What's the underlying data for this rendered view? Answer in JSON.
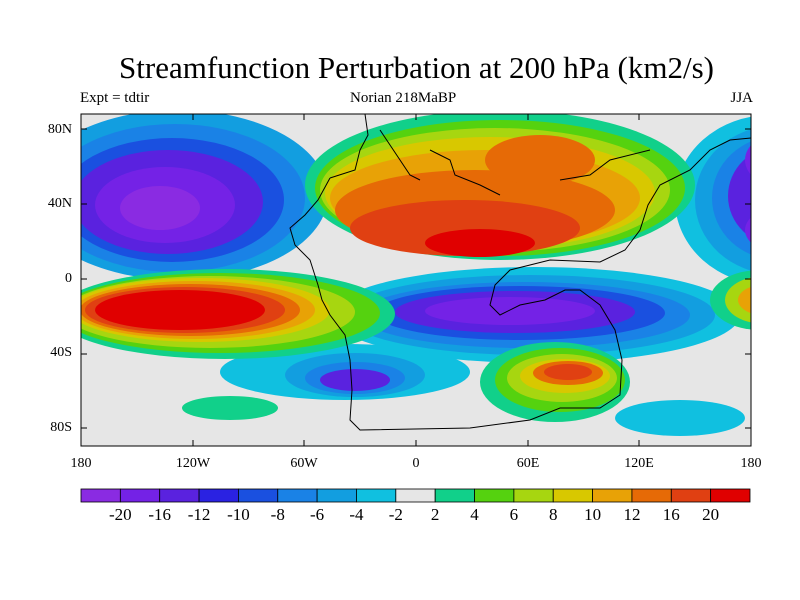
{
  "header": {
    "title": "Streamfunction Perturbation at 200 hPa (km2/s)",
    "left": "Expt = tdtir",
    "center": "Norian   218MaBP",
    "right": "JJA"
  },
  "axes": {
    "lat_ticks": [
      "80N",
      "40N",
      "0",
      "40S",
      "80S"
    ],
    "lon_ticks": [
      "180",
      "120W",
      "60W",
      "0",
      "60E",
      "120E",
      "180"
    ]
  },
  "colorbar": {
    "labels": [
      "-20",
      "-16",
      "-12",
      "-10",
      "-8",
      "-6",
      "-4",
      "-2",
      "2",
      "4",
      "6",
      "8",
      "10",
      "12",
      "16",
      "20"
    ],
    "colors": [
      "#8a2be2",
      "#7422e6",
      "#5a22df",
      "#2a22e2",
      "#1a50e0",
      "#1a82e6",
      "#129ee0",
      "#10c0e0",
      "#e6e6e6",
      "#11d08a",
      "#55d20f",
      "#a7d610",
      "#d8c800",
      "#e8a206",
      "#e66a06",
      "#e04012",
      "#e00000"
    ]
  },
  "map": {
    "background": "#e6e6e6"
  }
}
